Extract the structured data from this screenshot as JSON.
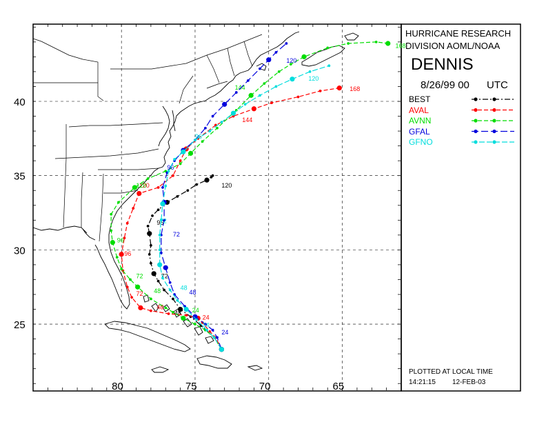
{
  "header": {
    "line1": "HURRICANE RESEARCH",
    "line2": "DIVISION AOML/NOAA",
    "storm": "DENNIS",
    "init_time": "8/26/99 00",
    "utc": "UTC"
  },
  "legend": [
    {
      "label": "BEST",
      "color": "#000000",
      "dash": "8,3,2,3"
    },
    {
      "label": "AVAL",
      "color": "#ff0000",
      "dash": "6,3"
    },
    {
      "label": "AVNN",
      "color": "#00dd00",
      "dash": "6,3"
    },
    {
      "label": "GFAL",
      "color": "#0000dd",
      "dash": "10,4"
    },
    {
      "label": "GFNO",
      "color": "#00dddd",
      "dash": "8,3"
    }
  ],
  "footer": {
    "plotted": "PLOTTED AT LOCAL TIME",
    "time": "14:21:15",
    "date": "12-FEB-03"
  },
  "axes": {
    "lat_labels": [
      "40",
      "35",
      "30",
      "25"
    ],
    "lon_labels": [
      "80",
      "75",
      "70",
      "65"
    ],
    "lon_range": [
      86,
      61
    ],
    "lat_range": [
      45.2,
      20.5
    ]
  },
  "tracks": [
    {
      "model": "BEST",
      "color": "#000000",
      "points": [
        [
          73.2,
          23.3
        ],
        [
          73.7,
          24.1
        ],
        [
          74.6,
          24.9
        ],
        [
          75.3,
          25.5
        ],
        [
          76.0,
          26.0
        ],
        [
          76.5,
          26.7
        ],
        [
          77.1,
          27.3
        ],
        [
          77.5,
          27.9
        ],
        [
          77.8,
          28.4
        ],
        [
          78.0,
          29.1
        ],
        [
          78.1,
          29.7
        ],
        [
          78.0,
          30.3
        ],
        [
          78.1,
          31.1
        ],
        [
          78.2,
          31.6
        ],
        [
          77.9,
          32.3
        ],
        [
          77.5,
          32.7
        ],
        [
          76.9,
          33.2
        ],
        [
          76.2,
          33.6
        ],
        [
          75.5,
          34.0
        ],
        [
          74.9,
          34.4
        ],
        [
          74.2,
          34.7
        ],
        [
          73.9,
          34.9
        ],
        [
          73.8,
          35.0
        ]
      ],
      "labels": [
        {
          "lon": 76.4,
          "lat": 25.6,
          "text": "48"
        },
        {
          "lon": 77.3,
          "lat": 28.1,
          "text": "72"
        },
        {
          "lon": 77.6,
          "lat": 31.7,
          "text": "96"
        },
        {
          "lon": 73.2,
          "lat": 34.2,
          "text": "120"
        }
      ]
    },
    {
      "model": "AVAL",
      "color": "#ff0000",
      "points": [
        [
          73.2,
          23.3
        ],
        [
          73.6,
          24.1
        ],
        [
          74.0,
          24.5
        ],
        [
          74.5,
          25.1
        ],
        [
          74.8,
          25.4
        ],
        [
          75.6,
          25.6
        ],
        [
          76.8,
          25.7
        ],
        [
          78.0,
          25.9
        ],
        [
          78.7,
          26.1
        ],
        [
          79.3,
          26.8
        ],
        [
          79.6,
          27.5
        ],
        [
          79.9,
          28.6
        ],
        [
          80.0,
          29.7
        ],
        [
          79.8,
          30.8
        ],
        [
          79.6,
          31.8
        ],
        [
          79.2,
          32.8
        ],
        [
          78.8,
          33.8
        ],
        [
          77.5,
          34.2
        ],
        [
          76.5,
          35.0
        ],
        [
          76.0,
          36.0
        ],
        [
          75.6,
          36.8
        ],
        [
          74.8,
          37.5
        ],
        [
          73.6,
          38.4
        ],
        [
          72.4,
          39.0
        ],
        [
          71.0,
          39.5
        ],
        [
          69.8,
          39.9
        ],
        [
          68.0,
          40.3
        ],
        [
          66.5,
          40.7
        ],
        [
          65.2,
          40.9
        ]
      ],
      "labels": [
        {
          "lon": 74.5,
          "lat": 25.3,
          "text": "24"
        },
        {
          "lon": 77.6,
          "lat": 26.0,
          "text": "48"
        },
        {
          "lon": 79.0,
          "lat": 26.9,
          "text": "72"
        },
        {
          "lon": 79.8,
          "lat": 29.6,
          "text": "96"
        },
        {
          "lon": 78.8,
          "lat": 34.2,
          "text": "120"
        },
        {
          "lon": 71.8,
          "lat": 38.6,
          "text": "144"
        },
        {
          "lon": 64.5,
          "lat": 40.7,
          "text": "168"
        }
      ]
    },
    {
      "model": "AVNN",
      "color": "#00dd00",
      "points": [
        [
          73.2,
          23.3
        ],
        [
          73.7,
          24.1
        ],
        [
          74.3,
          24.6
        ],
        [
          75.0,
          25.0
        ],
        [
          75.8,
          25.4
        ],
        [
          76.5,
          25.8
        ],
        [
          77.0,
          26.1
        ],
        [
          78.0,
          26.7
        ],
        [
          78.9,
          27.5
        ],
        [
          79.4,
          28.0
        ],
        [
          80.0,
          28.7
        ],
        [
          80.3,
          29.5
        ],
        [
          80.6,
          30.5
        ],
        [
          80.7,
          31.3
        ],
        [
          80.7,
          32.4
        ],
        [
          80.2,
          33.2
        ],
        [
          79.1,
          34.2
        ],
        [
          78.2,
          34.8
        ],
        [
          77.0,
          35.3
        ],
        [
          76.0,
          35.8
        ],
        [
          75.3,
          36.5
        ],
        [
          74.5,
          37.3
        ],
        [
          73.5,
          38.2
        ],
        [
          72.2,
          39.4
        ],
        [
          71.2,
          40.4
        ],
        [
          70.3,
          41.2
        ],
        [
          69.3,
          42.0
        ],
        [
          68.5,
          42.5
        ],
        [
          67.6,
          43.0
        ],
        [
          66.0,
          43.6
        ],
        [
          64.6,
          43.9
        ],
        [
          62.7,
          44.0
        ],
        [
          61.9,
          43.9
        ]
      ],
      "labels": [
        {
          "lon": 75.2,
          "lat": 25.8,
          "text": "24"
        },
        {
          "lon": 77.8,
          "lat": 27.1,
          "text": "48"
        },
        {
          "lon": 79.0,
          "lat": 28.1,
          "text": "72"
        },
        {
          "lon": 80.3,
          "lat": 30.5,
          "text": "96"
        },
        {
          "lon": 79.0,
          "lat": 34.2,
          "text": "120"
        },
        {
          "lon": 72.3,
          "lat": 40.8,
          "text": "144"
        },
        {
          "lon": 61.4,
          "lat": 43.6,
          "text": "168"
        }
      ]
    },
    {
      "model": "GFAL",
      "color": "#0000dd",
      "points": [
        [
          73.2,
          23.3
        ],
        [
          73.5,
          24.1
        ],
        [
          73.8,
          24.6
        ],
        [
          74.3,
          25.0
        ],
        [
          75.0,
          25.5
        ],
        [
          75.7,
          26.2
        ],
        [
          76.4,
          27.0
        ],
        [
          76.7,
          27.8
        ],
        [
          77.0,
          28.8
        ],
        [
          77.3,
          29.8
        ],
        [
          77.3,
          31.0
        ],
        [
          77.1,
          32.0
        ],
        [
          77.1,
          33.2
        ],
        [
          77.2,
          34.2
        ],
        [
          76.9,
          35.2
        ],
        [
          76.4,
          36.0
        ],
        [
          75.8,
          36.7
        ],
        [
          75.0,
          37.4
        ],
        [
          74.3,
          38.2
        ],
        [
          73.8,
          39.0
        ],
        [
          73.0,
          39.8
        ],
        [
          72.2,
          40.6
        ],
        [
          71.4,
          41.4
        ],
        [
          70.6,
          42.2
        ],
        [
          70.0,
          42.8
        ],
        [
          69.5,
          43.3
        ],
        [
          68.8,
          43.9
        ]
      ],
      "labels": [
        {
          "lon": 73.2,
          "lat": 24.3,
          "text": "24"
        },
        {
          "lon": 75.4,
          "lat": 27.0,
          "text": "48"
        },
        {
          "lon": 76.5,
          "lat": 30.9,
          "text": "72"
        },
        {
          "lon": 76.9,
          "lat": 35.4,
          "text": "96"
        },
        {
          "lon": 68.8,
          "lat": 42.6,
          "text": "120"
        }
      ]
    },
    {
      "model": "GFNO",
      "color": "#00dddd",
      "points": [
        [
          73.2,
          23.3
        ],
        [
          73.7,
          24.1
        ],
        [
          74.2,
          24.6
        ],
        [
          74.9,
          25.3
        ],
        [
          75.6,
          26.0
        ],
        [
          76.2,
          26.6
        ],
        [
          76.7,
          27.3
        ],
        [
          77.2,
          28.1
        ],
        [
          77.4,
          29.0
        ],
        [
          77.4,
          30.0
        ],
        [
          77.4,
          31.0
        ],
        [
          77.3,
          32.0
        ],
        [
          77.2,
          33.1
        ],
        [
          77.0,
          34.3
        ],
        [
          76.8,
          35.3
        ],
        [
          76.4,
          36.1
        ],
        [
          75.8,
          36.6
        ],
        [
          75.0,
          37.4
        ],
        [
          74.0,
          38.0
        ],
        [
          73.2,
          38.6
        ],
        [
          72.4,
          39.2
        ],
        [
          71.6,
          39.8
        ],
        [
          70.6,
          40.4
        ],
        [
          69.5,
          41.0
        ],
        [
          68.4,
          41.5
        ],
        [
          67.2,
          42.0
        ],
        [
          65.9,
          42.4
        ]
      ],
      "labels": [
        {
          "lon": 74.5,
          "lat": 24.8,
          "text": "24"
        },
        {
          "lon": 76.0,
          "lat": 27.3,
          "text": "48"
        },
        {
          "lon": 77.4,
          "lat": 31.8,
          "text": "72"
        },
        {
          "lon": 75.0,
          "lat": 37.5,
          "text": "96"
        },
        {
          "lon": 67.3,
          "lat": 41.4,
          "text": "120"
        }
      ]
    }
  ]
}
